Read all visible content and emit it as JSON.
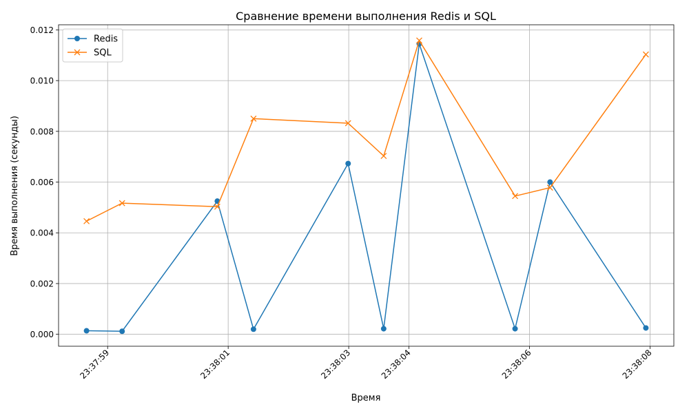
{
  "chart_data": {
    "type": "line",
    "title": "Сравнение времени выполнения Redis и SQL",
    "xlabel": "Время",
    "ylabel": "Время выполнения (секунды)",
    "x": [
      "23:37:58.65",
      "23:37:59.24",
      "23:38:00.82",
      "23:38:01.42",
      "23:38:02.99",
      "23:38:03.58",
      "23:38:04.17",
      "23:38:05.76",
      "23:38:06.34",
      "23:38:07.93"
    ],
    "x_ticks": [
      "23:37:59",
      "23:38:01",
      "23:38:03",
      "23:38:04",
      "23:38:06",
      "23:38:08"
    ],
    "y_ticks": [
      "0.000",
      "0.002",
      "0.004",
      "0.006",
      "0.008",
      "0.010",
      "0.012"
    ],
    "ylim": [
      -0.00047,
      0.0122
    ],
    "grid": true,
    "legend_position": "top-left",
    "series": [
      {
        "name": "Redis",
        "color": "#1f77b4",
        "marker": "circle",
        "values": [
          0.00014,
          0.00012,
          0.00525,
          0.0002,
          0.00673,
          0.00022,
          0.01145,
          0.00022,
          0.006,
          0.00025
        ]
      },
      {
        "name": "SQL",
        "color": "#ff7f0e",
        "marker": "x",
        "values": [
          0.00446,
          0.00517,
          0.00503,
          0.0085,
          0.00832,
          0.00703,
          0.01158,
          0.00545,
          0.00578,
          0.01103
        ]
      }
    ]
  }
}
